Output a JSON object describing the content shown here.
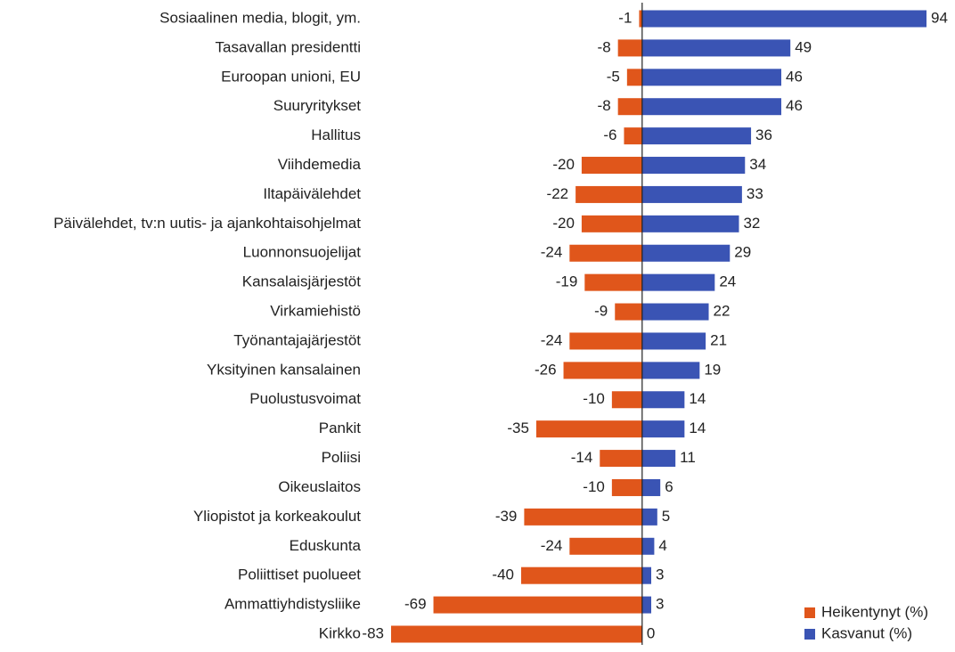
{
  "chart_data": {
    "type": "diverging-bar",
    "categories": [
      "Sosiaalinen media, blogit, ym.",
      "Tasavallan presidentti",
      "Euroopan unioni, EU",
      "Suuryritykset",
      "Hallitus",
      "Viihdemedia",
      "Iltapäivälehdet",
      "Päivälehdet, tv:n uutis- ja ajankohtaisohjelmat",
      "Luonnonsuojelijat",
      "Kansalaisjärjestöt",
      "Virkamiehistö",
      "Työnantajajärjestöt",
      "Yksityinen kansalainen",
      "Puolustusvoimat",
      "Pankit",
      "Poliisi",
      "Oikeuslaitos",
      "Yliopistot ja korkeakoulut",
      "Eduskunta",
      "Poliittiset puolueet",
      "Ammattiyhdistysliike",
      "Kirkko"
    ],
    "series": [
      {
        "name": "Heikentynyt (%)",
        "color": "#e0561b",
        "values": [
          -1,
          -8,
          -5,
          -8,
          -6,
          -20,
          -22,
          -20,
          -24,
          -19,
          -9,
          -24,
          -26,
          -10,
          -35,
          -14,
          -10,
          -39,
          -24,
          -40,
          -69,
          -83
        ]
      },
      {
        "name": "Kasvanut (%)",
        "color": "#3a54b4",
        "values": [
          94,
          49,
          46,
          46,
          36,
          34,
          33,
          32,
          29,
          24,
          22,
          21,
          19,
          14,
          14,
          11,
          6,
          5,
          4,
          3,
          3,
          0
        ]
      }
    ],
    "legend": "bottom-right"
  }
}
